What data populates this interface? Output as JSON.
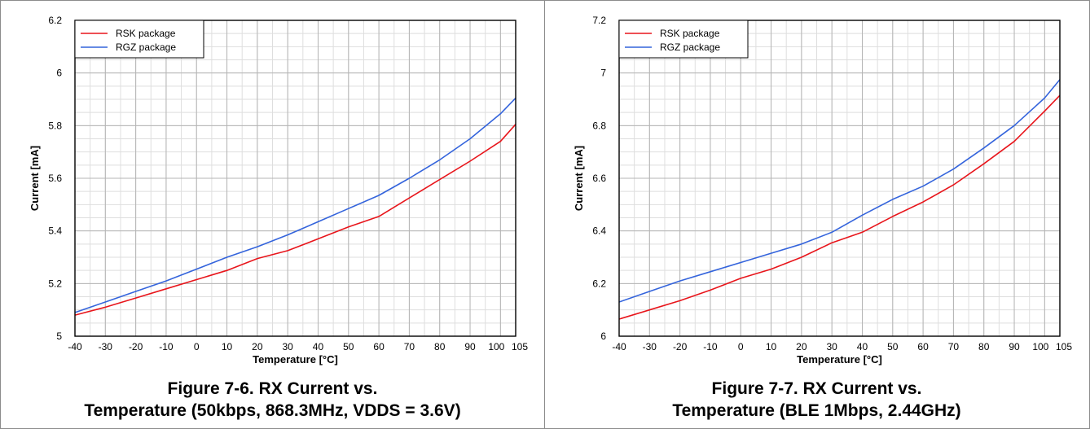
{
  "figures": [
    {
      "caption_line1": "Figure 7-6. RX Current vs.",
      "caption_line2": "Temperature (50kbps, 868.3MHz, VDDS = 3.6V)"
    },
    {
      "caption_line1": "Figure 7-7. RX Current vs.",
      "caption_line2": "Temperature (BLE 1Mbps, 2.44GHz)"
    }
  ],
  "chart_data": [
    {
      "type": "line",
      "title": "Figure 7-6. RX Current vs. Temperature (50kbps, 868.3MHz, VDDS = 3.6V)",
      "xlabel": "Temperature [°C]",
      "ylabel": "Current [mA]",
      "xlim": [
        -40,
        105
      ],
      "ylim": [
        5,
        6.2
      ],
      "xticks": [
        -40,
        -30,
        -20,
        -10,
        0,
        10,
        20,
        30,
        40,
        50,
        60,
        70,
        80,
        90,
        100,
        105
      ],
      "xtick_labels": [
        "-40",
        "-30",
        "-20",
        "-10",
        "0",
        "10",
        "20",
        "30",
        "40",
        "50",
        "60",
        "70",
        "80",
        "90",
        "100",
        "105"
      ],
      "yticks": [
        5,
        5.2,
        5.4,
        5.6,
        5.8,
        6,
        6.2
      ],
      "ytick_labels": [
        "5",
        "5.2",
        "5.4",
        "5.6",
        "5.8",
        "6",
        "6.2"
      ],
      "x_minor_step": 5,
      "y_minor_step": 0.05,
      "grid": true,
      "legend_position": "top-left",
      "x": [
        -40,
        -30,
        -20,
        -10,
        0,
        10,
        20,
        30,
        40,
        50,
        60,
        70,
        80,
        90,
        100,
        105
      ],
      "series": [
        {
          "name": "RSK package",
          "color": "#e8151b",
          "values": [
            5.08,
            5.11,
            5.145,
            5.18,
            5.215,
            5.25,
            5.295,
            5.325,
            5.37,
            5.415,
            5.455,
            5.525,
            5.595,
            5.665,
            5.74,
            5.805
          ]
        },
        {
          "name": "RGZ package",
          "color": "#3464dc",
          "values": [
            5.09,
            5.13,
            5.17,
            5.21,
            5.255,
            5.3,
            5.34,
            5.385,
            5.435,
            5.485,
            5.535,
            5.6,
            5.67,
            5.75,
            5.845,
            5.905
          ]
        }
      ]
    },
    {
      "type": "line",
      "title": "Figure 7-7. RX Current vs. Temperature (BLE 1Mbps, 2.44GHz)",
      "xlabel": "Temperature [°C]",
      "ylabel": "Current [mA]",
      "xlim": [
        -40,
        105
      ],
      "ylim": [
        6,
        7.2
      ],
      "xticks": [
        -40,
        -30,
        -20,
        -10,
        0,
        10,
        20,
        30,
        40,
        50,
        60,
        70,
        80,
        90,
        100,
        105
      ],
      "xtick_labels": [
        "-40",
        "-30",
        "-20",
        "-10",
        "0",
        "10",
        "20",
        "30",
        "40",
        "50",
        "60",
        "70",
        "80",
        "90",
        "100",
        "105"
      ],
      "yticks": [
        6,
        6.2,
        6.4,
        6.6,
        6.8,
        7,
        7.2
      ],
      "ytick_labels": [
        "6",
        "6.2",
        "6.4",
        "6.6",
        "6.8",
        "7",
        "7.2"
      ],
      "x_minor_step": 5,
      "y_minor_step": 0.05,
      "grid": true,
      "legend_position": "top-left",
      "x": [
        -40,
        -30,
        -20,
        -10,
        0,
        10,
        20,
        30,
        40,
        50,
        60,
        70,
        80,
        90,
        100,
        105
      ],
      "series": [
        {
          "name": "RSK package",
          "color": "#e8151b",
          "values": [
            6.065,
            6.1,
            6.135,
            6.175,
            6.22,
            6.255,
            6.3,
            6.355,
            6.395,
            6.455,
            6.51,
            6.575,
            6.655,
            6.74,
            6.855,
            6.915
          ]
        },
        {
          "name": "RGZ package",
          "color": "#3464dc",
          "values": [
            6.13,
            6.17,
            6.21,
            6.245,
            6.28,
            6.315,
            6.35,
            6.395,
            6.46,
            6.52,
            6.57,
            6.635,
            6.715,
            6.8,
            6.905,
            6.975
          ]
        }
      ]
    }
  ]
}
